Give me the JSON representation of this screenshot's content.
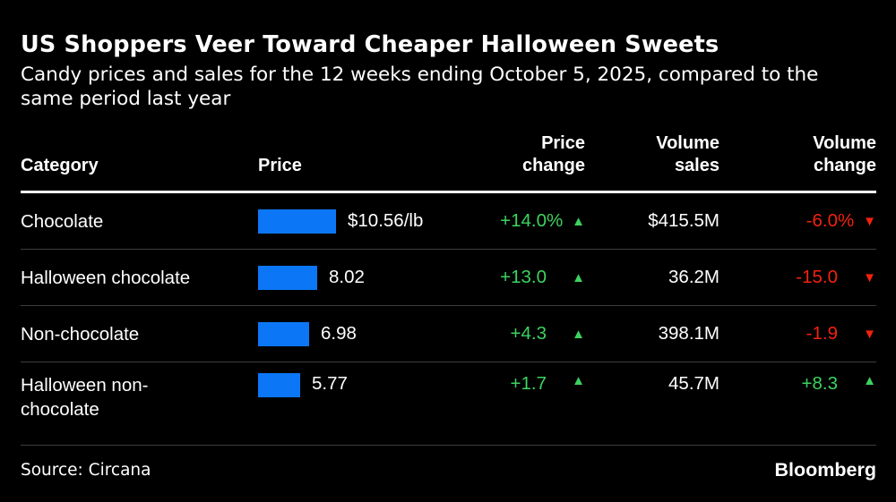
{
  "title": "US Shoppers Veer Toward Cheaper Halloween Sweets",
  "subtitle": "Candy prices and sales for the 12 weeks ending October 5, 2025, compared to the same period last year",
  "colors": {
    "background": "#000000",
    "text": "#ffffff",
    "bar_blue": "#0b77f7",
    "up_green": "#3dd25f",
    "down_red": "#f2220e",
    "separator_gray": "#3d3d3d"
  },
  "icons": {
    "up_arrow": "▲",
    "down_arrow": "▼"
  },
  "table": {
    "headers": {
      "category": "Category",
      "price": "Price",
      "price_change": "Price change",
      "volume_sales": "Volume sales",
      "volume_change": "Volume change"
    },
    "rows": [
      {
        "category": "Chocolate",
        "price_value": 10.56,
        "price_label": "$10.56/lb",
        "price_change": {
          "value": "+14.0",
          "suffix": "%",
          "dir": "up"
        },
        "volume_sales": "$415.5M",
        "volume_change": {
          "value": "-6.0",
          "suffix": "%",
          "dir": "down"
        }
      },
      {
        "category": "Halloween chocolate",
        "price_value": 8.02,
        "price_label": "8.02",
        "price_change": {
          "value": "+13.0",
          "suffix": "",
          "dir": "up"
        },
        "volume_sales": "36.2M",
        "volume_change": {
          "value": "-15.0",
          "suffix": "",
          "dir": "down"
        }
      },
      {
        "category": "Non-chocolate",
        "price_value": 6.98,
        "price_label": "6.98",
        "price_change": {
          "value": "+4.3",
          "suffix": "",
          "dir": "up"
        },
        "volume_sales": "398.1M",
        "volume_change": {
          "value": "-1.9",
          "suffix": "",
          "dir": "down"
        }
      },
      {
        "category": "Halloween non-chocolate",
        "price_value": 5.77,
        "price_label": "5.77",
        "price_change": {
          "value": "+1.7",
          "suffix": "",
          "dir": "up"
        },
        "volume_sales": "45.7M",
        "volume_change": {
          "value": "+8.3",
          "suffix": "",
          "dir": "up"
        }
      }
    ]
  },
  "footer": {
    "source": "Source: Circana",
    "brand": "Bloomberg"
  },
  "chart_data": {
    "type": "table",
    "title": "US Shoppers Veer Toward Cheaper Halloween Sweets",
    "subtitle": "Candy prices and sales for the 12 weeks ending October 5, 2025, compared to the same period last year",
    "columns": [
      "Category",
      "Price",
      "Price change",
      "Volume sales",
      "Volume change"
    ],
    "rows": [
      {
        "category": "Chocolate",
        "price_usd_per_lb": 10.56,
        "price_change_pct": 14.0,
        "volume_sales": "$415.5M",
        "volume_change_pct": -6.0
      },
      {
        "category": "Halloween chocolate",
        "price_usd_per_lb": 8.02,
        "price_change_pct": 13.0,
        "volume_sales": "36.2M",
        "volume_change_pct": -15.0
      },
      {
        "category": "Non-chocolate",
        "price_usd_per_lb": 6.98,
        "price_change_pct": 4.3,
        "volume_sales": "398.1M",
        "volume_change_pct": -1.9
      },
      {
        "category": "Halloween non-chocolate",
        "price_usd_per_lb": 5.77,
        "price_change_pct": 1.7,
        "volume_sales": "45.7M",
        "volume_change_pct": 8.3
      }
    ],
    "bar_encoding": "horizontal bar length proportional to price in USD",
    "bar_color": "#0b77f7",
    "source": "Circana",
    "legend_position": "none",
    "grid": false
  }
}
